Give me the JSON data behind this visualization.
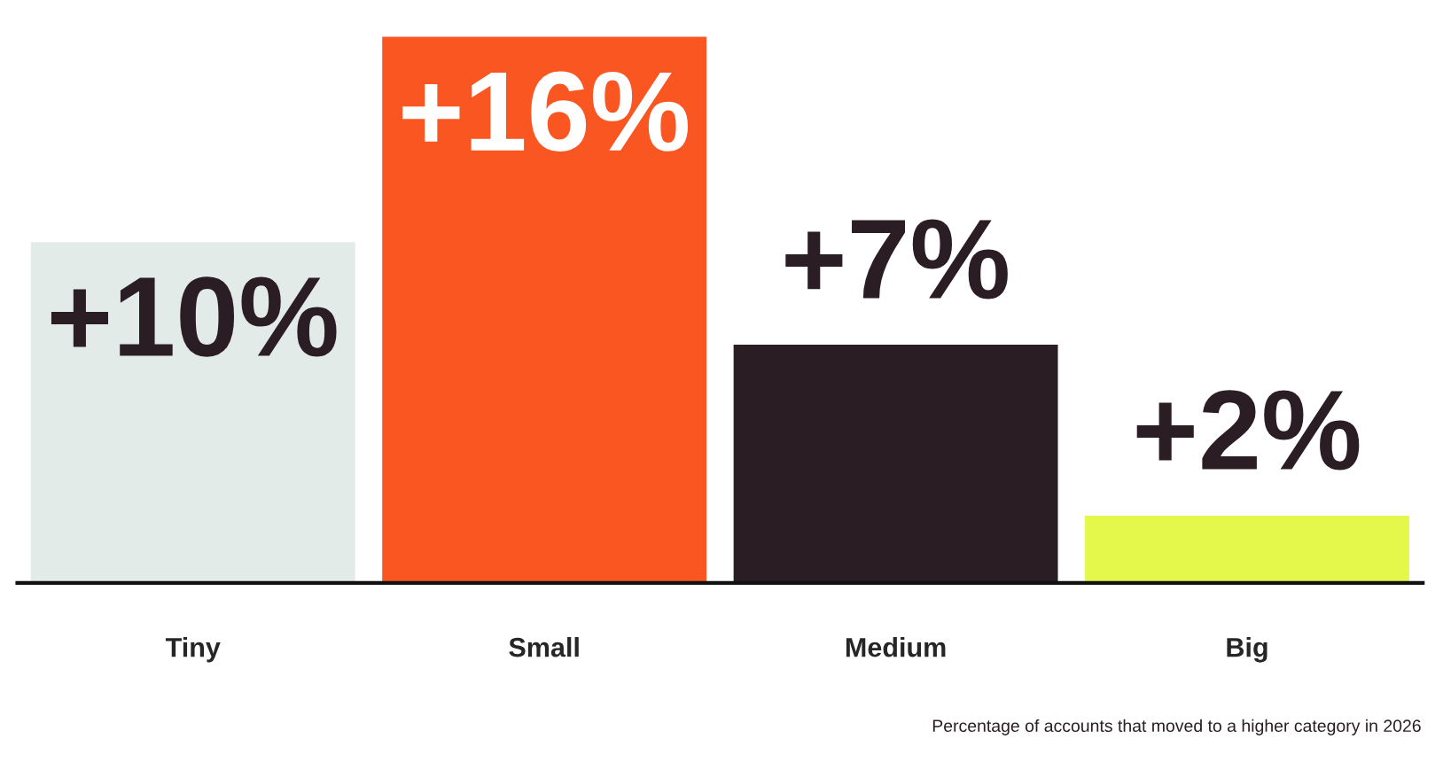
{
  "chart_data": {
    "type": "bar",
    "categories": [
      "Tiny",
      "Small",
      "Medium",
      "Big"
    ],
    "values": [
      10,
      16,
      7,
      2
    ],
    "value_labels": [
      "+10%",
      "+16%",
      "+7%",
      "+2%"
    ],
    "colors": [
      "#e3ebe8",
      "#fa5622",
      "#2b1d24",
      "#e4f84c"
    ],
    "tick_labels": "x",
    "grid": false,
    "legend": false,
    "annotations": [
      "Percentage of accounts that moved to a higher category in 2026"
    ]
  }
}
